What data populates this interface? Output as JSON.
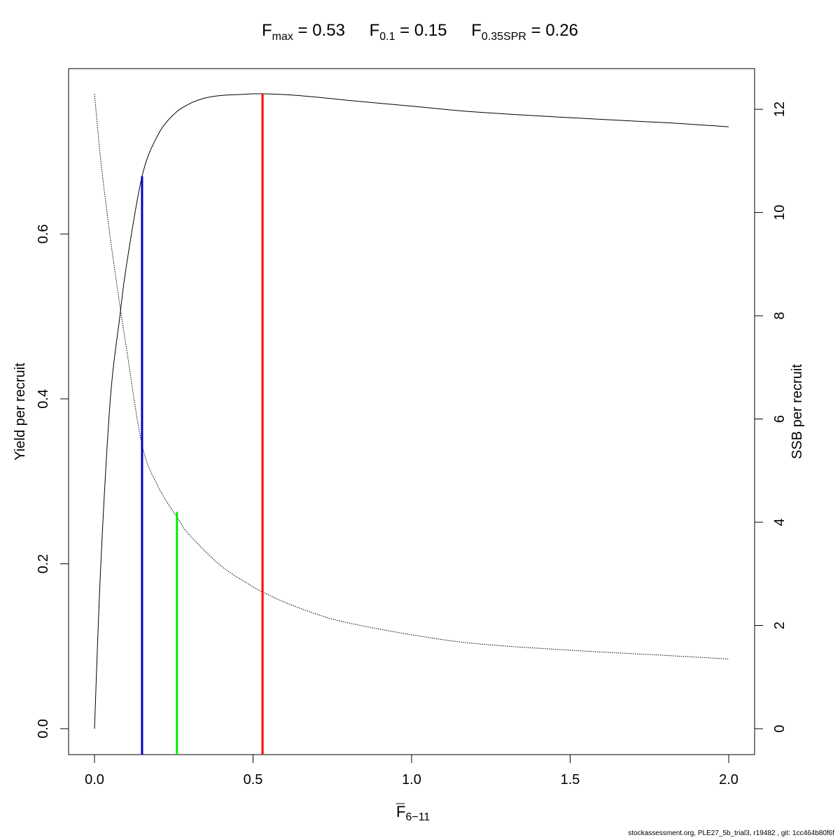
{
  "title": {
    "terms": [
      {
        "base": "F",
        "sub": "max",
        "rest": " = 0.53"
      },
      {
        "base": "F",
        "sub": "0.1",
        "rest": " = 0.15"
      },
      {
        "base": "F",
        "sub": "0.35SPR",
        "rest": " = 0.26"
      }
    ]
  },
  "footer": "stockassessment.org, PLE27_5b_trial3, r19482 , git: 1cc464b80f6f",
  "chart_data": {
    "type": "line",
    "xlabel_base": "F",
    "xlabel_sub": "6−11",
    "ylabel_left": "Yield per recruit",
    "ylabel_right": "SSB per recruit",
    "xlim": [
      0,
      2
    ],
    "ylim_left": [
      0,
      0.77
    ],
    "ylim_right": [
      0,
      12.3
    ],
    "x_ticks": [
      "0.0",
      "0.5",
      "1.0",
      "1.5",
      "2.0"
    ],
    "y_ticks_left": [
      "0.0",
      "0.2",
      "0.4",
      "0.6"
    ],
    "y_ticks_right": [
      "0",
      "2",
      "4",
      "6",
      "8",
      "10",
      "12"
    ],
    "series": [
      {
        "axis": "left",
        "style": "solid",
        "x": [
          0.0,
          0.02,
          0.05,
          0.08,
          0.1,
          0.15,
          0.2,
          0.25,
          0.3,
          0.35,
          0.4,
          0.45,
          0.5,
          0.53,
          0.6,
          0.7,
          0.8,
          1.0,
          1.2,
          1.5,
          1.8,
          2.0
        ],
        "y": [
          0.0,
          0.2,
          0.4,
          0.5,
          0.56,
          0.67,
          0.72,
          0.745,
          0.758,
          0.765,
          0.768,
          0.769,
          0.77,
          0.77,
          0.769,
          0.766,
          0.762,
          0.755,
          0.748,
          0.741,
          0.735,
          0.73
        ]
      },
      {
        "axis": "right",
        "style": "dotted",
        "x": [
          0.0,
          0.02,
          0.05,
          0.08,
          0.1,
          0.15,
          0.2,
          0.26,
          0.3,
          0.4,
          0.5,
          0.53,
          0.6,
          0.7,
          0.8,
          1.0,
          1.2,
          1.5,
          1.8,
          2.0
        ],
        "y": [
          12.3,
          11.0,
          9.5,
          8.2,
          7.4,
          5.5,
          4.7,
          4.1,
          3.75,
          3.15,
          2.75,
          2.65,
          2.45,
          2.22,
          2.05,
          1.82,
          1.65,
          1.52,
          1.42,
          1.35
        ]
      }
    ],
    "reference_lines": [
      {
        "name": "Fmax",
        "x": 0.53,
        "y_top": 0.77,
        "axis": "left",
        "color": "#ff0000"
      },
      {
        "name": "F0.1",
        "x": 0.15,
        "y_top": 0.67,
        "axis": "left",
        "color": "#0000cc"
      },
      {
        "name": "F0.35SPR",
        "x": 0.26,
        "y_top": 4.2,
        "axis": "right",
        "color": "#00ee00"
      }
    ]
  }
}
